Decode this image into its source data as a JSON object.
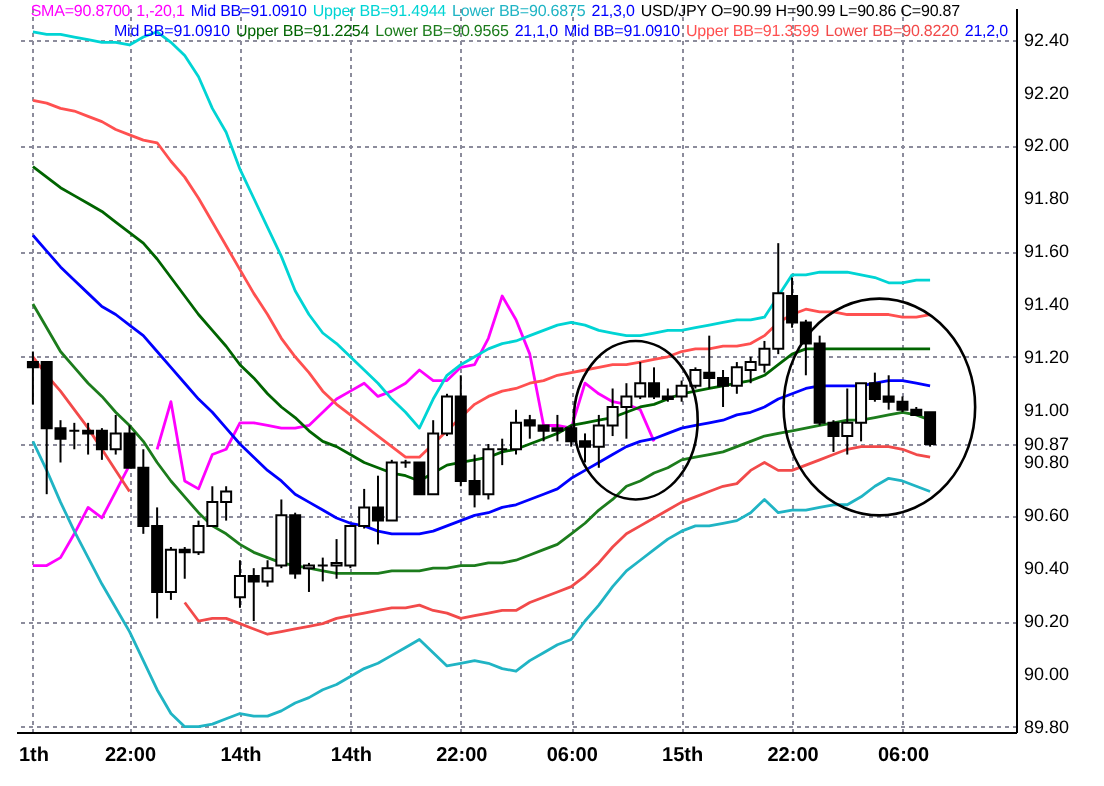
{
  "chart_data": {
    "type": "candlestick",
    "title": "USD/JPY O=90.99 H=90.99 L=90.86 C=90.87",
    "categories": [
      "1th",
      null,
      null,
      null,
      null,
      null,
      null,
      "22:00",
      null,
      null,
      null,
      null,
      null,
      null,
      null,
      "14th",
      null,
      null,
      null,
      null,
      null,
      null,
      null,
      "14th",
      null,
      null,
      null,
      null,
      null,
      null,
      null,
      "22:00",
      null,
      null,
      null,
      null,
      null,
      null,
      null,
      "06:00",
      null,
      null,
      null,
      null,
      null,
      null,
      null,
      "15th",
      null,
      null,
      null,
      null,
      null,
      null,
      null,
      "22:00",
      null,
      null,
      null,
      null,
      null,
      null,
      null,
      "06:00",
      null,
      null
    ],
    "ohlc": [
      [
        91.18,
        91.22,
        91.02,
        91.16
      ],
      [
        91.18,
        91.18,
        90.68,
        90.93
      ],
      [
        90.93,
        90.96,
        90.8,
        90.89
      ],
      [
        90.92,
        90.95,
        90.85,
        90.92
      ],
      [
        90.92,
        90.95,
        90.83,
        90.91
      ],
      [
        90.92,
        90.93,
        90.81,
        90.85
      ],
      [
        90.85,
        90.98,
        90.83,
        90.91
      ],
      [
        90.91,
        90.94,
        90.78,
        90.78
      ],
      [
        90.78,
        90.85,
        90.53,
        90.56
      ],
      [
        90.56,
        90.63,
        90.21,
        90.31
      ],
      [
        90.31,
        90.48,
        90.28,
        90.47
      ],
      [
        90.47,
        90.48,
        90.36,
        90.46
      ],
      [
        90.46,
        90.58,
        90.45,
        90.56
      ],
      [
        90.56,
        90.71,
        90.56,
        90.65
      ],
      [
        90.65,
        90.71,
        90.58,
        90.69
      ],
      [
        90.29,
        90.43,
        90.25,
        90.37
      ],
      [
        90.37,
        90.4,
        90.2,
        90.35
      ],
      [
        90.35,
        90.43,
        90.33,
        90.4
      ],
      [
        90.41,
        90.66,
        90.4,
        90.6
      ],
      [
        90.6,
        90.61,
        90.36,
        90.38
      ],
      [
        90.4,
        90.42,
        90.31,
        90.41
      ],
      [
        90.41,
        90.44,
        90.35,
        90.41
      ],
      [
        90.41,
        90.51,
        90.36,
        90.42
      ],
      [
        90.41,
        90.56,
        90.4,
        90.56
      ],
      [
        90.56,
        90.7,
        90.55,
        90.63
      ],
      [
        90.63,
        90.75,
        90.49,
        90.58
      ],
      [
        90.58,
        90.81,
        90.58,
        90.8
      ],
      [
        90.8,
        90.81,
        90.78,
        90.8
      ],
      [
        90.8,
        90.8,
        90.68,
        90.68
      ],
      [
        90.68,
        90.96,
        90.68,
        90.91
      ],
      [
        90.91,
        91.06,
        90.9,
        91.05
      ],
      [
        91.05,
        91.13,
        90.71,
        90.73
      ],
      [
        90.73,
        90.83,
        90.63,
        90.68
      ],
      [
        90.68,
        90.87,
        90.66,
        90.85
      ],
      [
        90.85,
        90.89,
        90.79,
        90.85
      ],
      [
        90.85,
        91.0,
        90.83,
        90.95
      ],
      [
        90.96,
        90.98,
        90.89,
        90.94
      ],
      [
        90.94,
        90.94,
        90.88,
        90.92
      ],
      [
        90.93,
        90.98,
        90.88,
        90.92
      ],
      [
        90.93,
        90.94,
        90.86,
        90.88
      ],
      [
        90.88,
        90.91,
        90.8,
        90.86
      ],
      [
        90.86,
        90.98,
        90.78,
        90.94
      ],
      [
        90.94,
        91.08,
        90.9,
        91.01
      ],
      [
        91.01,
        91.1,
        90.89,
        91.05
      ],
      [
        91.05,
        91.18,
        91.04,
        91.1
      ],
      [
        91.1,
        91.16,
        91.04,
        91.05
      ],
      [
        91.05,
        91.08,
        91.03,
        91.04
      ],
      [
        91.05,
        91.11,
        91.03,
        91.09
      ],
      [
        91.09,
        91.16,
        91.08,
        91.15
      ],
      [
        91.14,
        91.28,
        91.08,
        91.12
      ],
      [
        91.12,
        91.15,
        91.01,
        91.09
      ],
      [
        91.09,
        91.18,
        91.06,
        91.16
      ],
      [
        91.15,
        91.2,
        91.1,
        91.18
      ],
      [
        91.17,
        91.26,
        91.14,
        91.23
      ],
      [
        91.23,
        91.63,
        91.21,
        91.44
      ],
      [
        91.43,
        91.5,
        91.31,
        91.33
      ],
      [
        91.33,
        91.34,
        91.13,
        91.25
      ],
      [
        91.25,
        91.28,
        90.94,
        90.95
      ],
      [
        90.95,
        90.96,
        90.84,
        90.9
      ],
      [
        90.9,
        91.08,
        90.83,
        90.95
      ],
      [
        90.95,
        91.1,
        90.88,
        91.1
      ],
      [
        91.1,
        91.14,
        91.03,
        91.04
      ],
      [
        91.05,
        91.13,
        91.0,
        91.03
      ],
      [
        91.03,
        91.05,
        90.99,
        91.0
      ],
      [
        91.0,
        91.01,
        90.98,
        90.98
      ],
      [
        90.99,
        90.99,
        90.86,
        90.87
      ]
    ],
    "series": [
      {
        "type": "line",
        "name": "SMA=90.8700",
        "color": "#ff00ff",
        "values": [
          90.41,
          90.41,
          90.44,
          90.53,
          90.63,
          90.59,
          90.69,
          90.79,
          null,
          90.85,
          91.03,
          90.73,
          90.7,
          90.83,
          90.85,
          90.95,
          90.95,
          90.94,
          90.93,
          90.93,
          90.94,
          90.99,
          91.04,
          91.07,
          91.1,
          91.05,
          91.07,
          91.1,
          91.15,
          91.11,
          91.11,
          91.16,
          91.17,
          91.27,
          91.43,
          91.34,
          91.21,
          90.94,
          90.94,
          90.93,
          91.1,
          91.06,
          91.03,
          91.02,
          91.0,
          90.88,
          null,
          null,
          null,
          null,
          null,
          null,
          null,
          null,
          null,
          null,
          null,
          null,
          null,
          null,
          null,
          null,
          null,
          null,
          null,
          null
        ]
      },
      {
        "type": "line",
        "name": "Mid BB=91.0910",
        "color": "#0000ff",
        "values": [
          91.66,
          91.6,
          91.54,
          91.49,
          91.44,
          91.39,
          91.36,
          91.32,
          91.28,
          91.22,
          91.16,
          91.1,
          91.04,
          90.99,
          90.93,
          90.87,
          90.82,
          90.77,
          90.73,
          90.68,
          90.65,
          90.62,
          90.59,
          90.57,
          90.56,
          90.54,
          90.53,
          90.53,
          90.53,
          90.54,
          90.56,
          90.58,
          90.6,
          90.61,
          90.63,
          90.64,
          90.66,
          90.68,
          90.7,
          90.74,
          90.77,
          90.8,
          90.83,
          90.86,
          90.88,
          90.89,
          90.91,
          90.93,
          90.94,
          90.95,
          90.96,
          90.98,
          90.99,
          91.01,
          91.04,
          91.06,
          91.08,
          91.09,
          91.09,
          91.09,
          91.09,
          91.1,
          91.11,
          91.11,
          91.1,
          91.09
        ]
      },
      {
        "type": "line",
        "name": "Upper BB=91.4944",
        "color": "#00d4d4",
        "values": [
          92.43,
          92.42,
          92.42,
          92.41,
          92.4,
          92.39,
          92.39,
          92.38,
          92.41,
          92.43,
          92.39,
          92.34,
          92.26,
          92.14,
          92.05,
          91.91,
          91.8,
          91.69,
          91.58,
          91.45,
          91.36,
          91.29,
          91.25,
          91.2,
          91.15,
          91.1,
          91.04,
          90.99,
          90.93,
          91.04,
          91.13,
          91.17,
          91.2,
          91.23,
          91.25,
          91.26,
          91.28,
          91.3,
          91.32,
          91.33,
          91.32,
          91.3,
          91.29,
          91.28,
          91.28,
          91.29,
          91.3,
          91.3,
          91.31,
          91.32,
          91.33,
          91.34,
          91.34,
          91.35,
          91.43,
          91.51,
          91.51,
          91.52,
          91.52,
          91.52,
          91.51,
          91.5,
          91.48,
          91.48,
          91.49,
          91.49
        ]
      },
      {
        "type": "line",
        "name": "Lower BB=90.6875",
        "color": "#20b4c4",
        "values": [
          90.88,
          90.77,
          90.65,
          90.54,
          90.44,
          90.34,
          90.25,
          90.16,
          90.05,
          89.94,
          89.85,
          89.8,
          89.8,
          89.81,
          89.83,
          89.85,
          89.84,
          89.84,
          89.86,
          89.89,
          89.91,
          89.94,
          89.96,
          89.99,
          90.02,
          90.04,
          90.07,
          90.1,
          90.13,
          90.08,
          90.03,
          90.04,
          90.05,
          90.04,
          90.02,
          90.01,
          90.05,
          90.08,
          90.11,
          90.13,
          90.2,
          90.26,
          90.33,
          90.39,
          90.43,
          90.47,
          90.51,
          90.54,
          90.56,
          90.56,
          90.57,
          90.58,
          90.61,
          90.66,
          90.61,
          90.62,
          90.62,
          90.63,
          90.64,
          90.64,
          90.67,
          90.71,
          90.74,
          90.73,
          90.71,
          90.69
        ]
      },
      {
        "type": "line",
        "name": "Upper BB=91.2254",
        "color": "#006400",
        "values": [
          91.92,
          91.88,
          91.84,
          91.81,
          91.78,
          91.75,
          91.71,
          91.67,
          91.63,
          91.57,
          91.5,
          91.43,
          91.36,
          91.3,
          91.24,
          91.17,
          91.12,
          91.06,
          91.01,
          90.97,
          90.92,
          90.88,
          90.86,
          90.83,
          90.8,
          90.78,
          90.76,
          90.75,
          90.73,
          90.76,
          90.79,
          90.8,
          90.81,
          90.82,
          90.84,
          90.85,
          90.87,
          90.89,
          90.91,
          90.94,
          90.95,
          90.96,
          90.97,
          90.99,
          91.01,
          91.02,
          91.04,
          91.06,
          91.07,
          91.08,
          91.09,
          91.1,
          91.11,
          91.13,
          91.17,
          91.21,
          91.23,
          91.23,
          91.23,
          91.23,
          91.23,
          91.23,
          91.23,
          91.23,
          91.23,
          91.23
        ]
      },
      {
        "type": "line",
        "name": "Lower BB=90.9565",
        "color": "#1c7c1c",
        "values": [
          91.4,
          91.31,
          91.22,
          91.16,
          91.1,
          91.05,
          90.99,
          90.94,
          90.88,
          90.8,
          90.73,
          90.67,
          90.61,
          90.56,
          90.53,
          90.49,
          90.46,
          90.44,
          90.42,
          90.41,
          90.4,
          90.39,
          90.38,
          90.38,
          90.38,
          90.38,
          90.39,
          90.39,
          90.39,
          90.4,
          90.4,
          90.41,
          90.41,
          90.42,
          90.42,
          90.43,
          90.45,
          90.47,
          90.49,
          90.53,
          90.57,
          90.62,
          90.66,
          90.71,
          90.73,
          90.76,
          90.78,
          90.81,
          90.82,
          90.83,
          90.84,
          90.86,
          90.88,
          90.9,
          90.91,
          90.92,
          90.93,
          90.94,
          90.95,
          90.96,
          90.96,
          90.97,
          90.98,
          90.99,
          90.98,
          90.96
        ]
      },
      {
        "type": "line",
        "name": "Upper BB=91.3599",
        "color": "#ff5050",
        "values": [
          92.17,
          92.16,
          92.14,
          92.13,
          92.11,
          92.09,
          92.06,
          92.04,
          92.02,
          92.01,
          91.94,
          91.88,
          91.8,
          91.71,
          91.62,
          91.53,
          91.44,
          91.36,
          91.27,
          91.2,
          91.14,
          91.07,
          91.02,
          90.98,
          90.94,
          90.9,
          90.86,
          90.82,
          90.82,
          90.87,
          90.92,
          90.97,
          91.02,
          91.05,
          91.07,
          91.08,
          91.1,
          91.11,
          91.13,
          91.14,
          91.15,
          91.16,
          91.17,
          91.17,
          91.18,
          91.19,
          91.2,
          91.22,
          91.23,
          91.23,
          91.24,
          91.24,
          91.25,
          91.28,
          91.33,
          91.36,
          91.38,
          91.37,
          91.37,
          91.36,
          91.36,
          91.36,
          91.36,
          91.35,
          91.35,
          91.36
        ]
      },
      {
        "type": "line",
        "name": "Lower BB=90.8220",
        "color": "#f24a4a",
        "values": [
          91.2,
          91.13,
          91.07,
          91.0,
          90.93,
          90.85,
          90.77,
          90.69,
          null,
          null,
          null,
          90.27,
          90.2,
          90.21,
          90.21,
          90.19,
          90.17,
          90.15,
          90.16,
          90.17,
          90.18,
          90.19,
          90.21,
          90.22,
          90.23,
          90.24,
          90.25,
          90.25,
          90.26,
          90.24,
          90.23,
          90.21,
          90.22,
          90.23,
          90.24,
          90.24,
          90.27,
          90.29,
          90.31,
          90.33,
          90.37,
          90.42,
          90.48,
          90.53,
          90.56,
          90.59,
          90.62,
          90.65,
          90.67,
          90.69,
          90.71,
          90.72,
          90.77,
          90.8,
          90.77,
          90.77,
          90.79,
          90.81,
          90.83,
          90.85,
          90.86,
          90.86,
          90.86,
          90.85,
          90.83,
          90.82
        ]
      }
    ],
    "annotations": [
      "1,-20,1",
      "21,3,0",
      "Mid BB=91.0910",
      "21,1,0",
      "Mid BB=91.0910",
      "21,2,0"
    ],
    "ylim": [
      89.78,
      92.52
    ],
    "yticks": [
      {
        "value": 89.8,
        "label": "89.80"
      },
      {
        "value": 90,
        "label": "90.00"
      },
      {
        "value": 90.2,
        "label": "90.20"
      },
      {
        "value": 90.4,
        "label": "90.40"
      },
      {
        "value": 90.6,
        "label": "90.60"
      },
      {
        "value": 90.8,
        "label": "90.80"
      },
      {
        "value": 90.87,
        "label": "90.87"
      },
      {
        "value": 91,
        "label": "91.00"
      },
      {
        "value": 91.2,
        "label": "91.20"
      },
      {
        "value": 91.4,
        "label": "91.40"
      },
      {
        "value": 91.6,
        "label": "91.60"
      },
      {
        "value": 91.8,
        "label": "91.80"
      },
      {
        "value": 92,
        "label": "92.00"
      },
      {
        "value": 92.2,
        "label": "92.20"
      },
      {
        "value": 92.4,
        "label": "92.40"
      }
    ],
    "grid": true,
    "legend": "top right",
    "marker": "none",
    "line_style": "solid"
  }
}
